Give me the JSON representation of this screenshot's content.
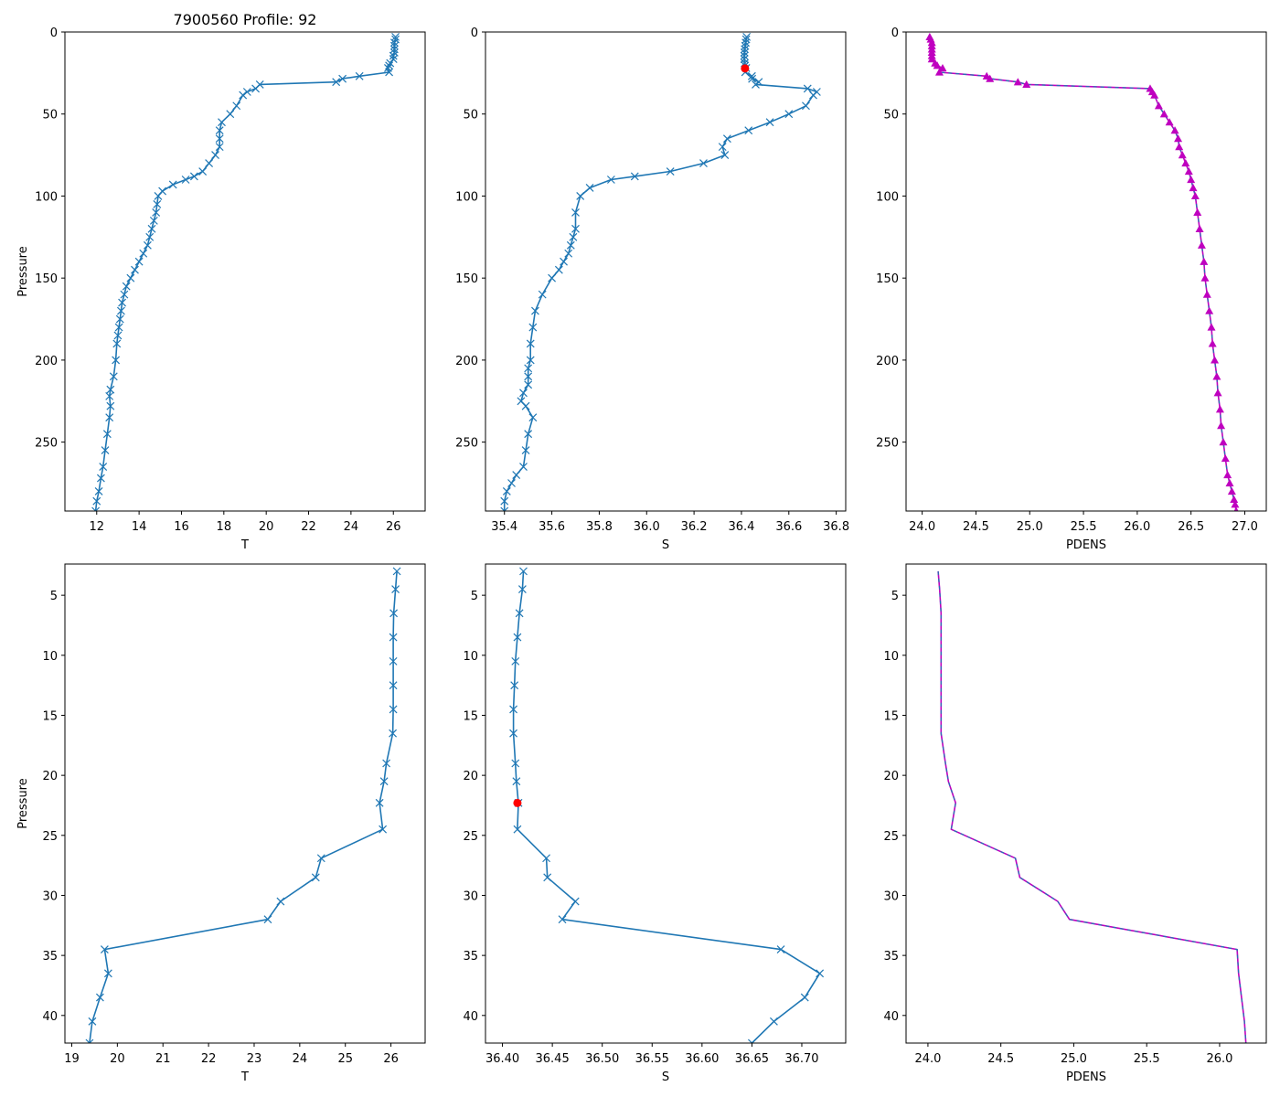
{
  "figure_title": "7900560 Profile: 92",
  "colors": {
    "line": "#1f77b4",
    "density": "#bf00bf",
    "density_dash": "#1f77b4",
    "flag": "#ff0000"
  },
  "chart_data": [
    {
      "id": "temp-full",
      "type": "line",
      "xlabel": "T",
      "ylabel": "Pressure",
      "title": "7900560 Profile: 92",
      "xlim": [
        10.5,
        27.5
      ],
      "ylim": [
        292,
        0
      ],
      "xticks": [
        12,
        14,
        16,
        18,
        20,
        22,
        24,
        26
      ],
      "yticks": [
        0,
        50,
        100,
        150,
        200,
        250
      ],
      "marker": "x",
      "color": "#1f77b4",
      "x": [
        26.1,
        26.1,
        26.05,
        26.05,
        26.05,
        26.05,
        26.0,
        26.0,
        25.85,
        25.8,
        25.75,
        25.8,
        24.4,
        23.6,
        23.3,
        19.7,
        19.5,
        19.1,
        18.9,
        18.6,
        18.3,
        17.9,
        17.8,
        17.8,
        17.8,
        17.6,
        17.3,
        17.0,
        16.6,
        16.2,
        15.6,
        15.1,
        14.9,
        14.85,
        14.8,
        14.7,
        14.6,
        14.5,
        14.4,
        14.2,
        14.0,
        13.8,
        13.6,
        13.4,
        13.3,
        13.2,
        13.15,
        13.1,
        13.05,
        13.0,
        12.95,
        12.9,
        12.8,
        12.65,
        12.6,
        12.65,
        12.6,
        12.5,
        12.4,
        12.3,
        12.2,
        12.1,
        12.0,
        11.95
      ],
      "y": [
        3,
        4.5,
        6.5,
        8.5,
        10.5,
        12.5,
        14.5,
        16.5,
        19,
        20.5,
        22,
        24.5,
        26.9,
        28.5,
        30.5,
        32,
        34.5,
        36.5,
        38.5,
        45,
        50,
        55,
        60,
        65,
        70,
        75,
        80,
        85,
        88,
        90,
        93,
        97,
        100,
        105,
        110,
        115,
        120,
        125,
        130,
        135,
        140,
        145,
        150,
        155,
        160,
        165,
        170,
        175,
        180,
        185,
        190,
        200,
        210,
        218,
        222,
        228,
        235,
        245,
        255,
        265,
        272,
        280,
        286,
        292
      ]
    },
    {
      "id": "sal-full",
      "type": "line",
      "xlabel": "S",
      "ylabel": "",
      "title": "",
      "xlim": [
        35.32,
        36.84
      ],
      "ylim": [
        292,
        0
      ],
      "xticks": [
        35.4,
        35.6,
        35.8,
        36.0,
        36.2,
        36.4,
        36.6,
        36.8
      ],
      "yticks": [
        0,
        50,
        100,
        150,
        200,
        250
      ],
      "marker": "x",
      "color": "#1f77b4",
      "x": [
        36.422,
        36.42,
        36.418,
        36.416,
        36.414,
        36.413,
        36.412,
        36.412,
        36.414,
        36.415,
        36.42,
        36.416,
        36.444,
        36.445,
        36.473,
        36.46,
        36.679,
        36.718,
        36.703,
        36.672,
        36.6,
        36.52,
        36.43,
        36.34,
        36.32,
        36.33,
        36.24,
        36.1,
        35.95,
        35.85,
        35.76,
        35.72,
        35.7,
        35.7,
        35.69,
        35.68,
        35.67,
        35.65,
        35.63,
        35.6,
        35.56,
        35.53,
        35.52,
        35.51,
        35.51,
        35.5,
        35.5,
        35.5,
        35.48,
        35.47,
        35.49,
        35.52,
        35.5,
        35.49,
        35.48,
        35.45,
        35.43,
        35.41,
        35.4,
        35.4
      ],
      "y": [
        3,
        4.5,
        6.5,
        8.5,
        10.5,
        12.5,
        14.5,
        16.5,
        19,
        20.5,
        22,
        24.5,
        26.9,
        28.5,
        30.5,
        32,
        34.5,
        36.5,
        38.5,
        45,
        50,
        55,
        60,
        65,
        70,
        75,
        80,
        85,
        88,
        90,
        95,
        100,
        110,
        120,
        125,
        130,
        135,
        140,
        145,
        150,
        160,
        170,
        180,
        190,
        200,
        205,
        210,
        215,
        220,
        225,
        228,
        235,
        245,
        255,
        265,
        270,
        275,
        280,
        286,
        292
      ],
      "flag": {
        "x": 36.415,
        "y": 22.2
      }
    },
    {
      "id": "dens-full",
      "type": "line",
      "xlabel": "PDENS",
      "ylabel": "",
      "title": "",
      "xlim": [
        23.85,
        27.2
      ],
      "ylim": [
        292,
        0
      ],
      "xticks": [
        24.0,
        24.5,
        25.0,
        25.5,
        26.0,
        26.5,
        27.0
      ],
      "yticks": [
        0,
        50,
        100,
        150,
        200,
        250
      ],
      "marker": "triangle",
      "color": "#bf00bf",
      "dash_color": "#1f77b4",
      "x": [
        24.07,
        24.08,
        24.09,
        24.09,
        24.09,
        24.09,
        24.09,
        24.09,
        24.12,
        24.14,
        24.19,
        24.16,
        24.6,
        24.63,
        24.89,
        24.97,
        26.12,
        26.14,
        26.16,
        26.2,
        26.25,
        26.3,
        26.35,
        26.38,
        26.39,
        26.42,
        26.45,
        26.48,
        26.5,
        26.52,
        26.54,
        26.56,
        26.58,
        26.6,
        26.62,
        26.63,
        26.65,
        26.67,
        26.69,
        26.7,
        26.72,
        26.74,
        26.75,
        26.77,
        26.78,
        26.8,
        26.82,
        26.84,
        26.86,
        26.88,
        26.9,
        26.91,
        26.92
      ],
      "y": [
        3,
        4.5,
        6.5,
        8.5,
        10.5,
        12.5,
        14.5,
        16.5,
        19,
        20.5,
        22,
        24.5,
        26.9,
        28.5,
        30.5,
        32,
        34.5,
        36.5,
        38.5,
        45,
        50,
        55,
        60,
        65,
        70,
        75,
        80,
        85,
        90,
        95,
        100,
        110,
        120,
        130,
        140,
        150,
        160,
        170,
        180,
        190,
        200,
        210,
        220,
        230,
        240,
        250,
        260,
        270,
        275,
        280,
        285,
        288,
        292
      ]
    },
    {
      "id": "temp-zoom",
      "type": "line",
      "xlabel": "T",
      "ylabel": "Pressure",
      "title": "",
      "xlim": [
        18.85,
        26.75
      ],
      "ylim": [
        42.3,
        2.4
      ],
      "xticks": [
        19,
        20,
        21,
        22,
        23,
        24,
        25,
        26
      ],
      "yticks": [
        5,
        10,
        15,
        20,
        25,
        30,
        35,
        40
      ],
      "marker": "x",
      "color": "#1f77b4",
      "x": [
        26.13,
        26.1,
        26.06,
        26.05,
        26.05,
        26.05,
        26.05,
        26.04,
        25.9,
        25.85,
        25.75,
        25.82,
        24.47,
        24.35,
        23.58,
        23.3,
        19.72,
        19.8,
        19.62,
        19.45,
        19.39
      ],
      "y": [
        3,
        4.5,
        6.5,
        8.5,
        10.5,
        12.5,
        14.5,
        16.5,
        19,
        20.5,
        22.3,
        24.5,
        26.9,
        28.5,
        30.5,
        32,
        34.5,
        36.5,
        38.5,
        40.5,
        42.3
      ]
    },
    {
      "id": "sal-zoom",
      "type": "line",
      "xlabel": "S",
      "ylabel": "",
      "title": "",
      "xlim": [
        36.383,
        36.744
      ],
      "ylim": [
        42.3,
        2.4
      ],
      "xticks": [
        36.4,
        36.45,
        36.5,
        36.55,
        36.6,
        36.65,
        36.7
      ],
      "yticks": [
        5,
        10,
        15,
        20,
        25,
        30,
        35,
        40
      ],
      "marker": "x",
      "color": "#1f77b4",
      "x": [
        36.421,
        36.42,
        36.417,
        36.415,
        36.413,
        36.412,
        36.411,
        36.411,
        36.413,
        36.414,
        36.416,
        36.415,
        36.444,
        36.445,
        36.473,
        36.46,
        36.679,
        36.718,
        36.703,
        36.672,
        36.65
      ],
      "y": [
        3,
        4.5,
        6.5,
        8.5,
        10.5,
        12.5,
        14.5,
        16.5,
        19,
        20.5,
        22.3,
        24.5,
        26.9,
        28.5,
        30.5,
        32,
        34.5,
        36.5,
        38.5,
        40.5,
        42.3
      ],
      "flag": {
        "x": 36.415,
        "y": 22.3
      }
    },
    {
      "id": "dens-zoom",
      "type": "line",
      "xlabel": "PDENS",
      "ylabel": "",
      "title": "",
      "xlim": [
        23.85,
        26.32
      ],
      "ylim": [
        42.3,
        2.4
      ],
      "xticks": [
        24.0,
        24.5,
        25.0,
        25.5,
        26.0
      ],
      "yticks": [
        5,
        10,
        15,
        20,
        25,
        30,
        35,
        40
      ],
      "marker": "none",
      "color": "#bf00bf",
      "dash_color": "#1f77b4",
      "x": [
        24.07,
        24.08,
        24.09,
        24.09,
        24.09,
        24.09,
        24.09,
        24.09,
        24.12,
        24.14,
        24.19,
        24.16,
        24.6,
        24.63,
        24.89,
        24.97,
        26.12,
        26.13,
        26.15,
        26.17,
        26.18
      ],
      "y": [
        3,
        4.5,
        6.5,
        8.5,
        10.5,
        12.5,
        14.5,
        16.5,
        19,
        20.5,
        22.3,
        24.5,
        26.9,
        28.5,
        30.5,
        32,
        34.5,
        36.5,
        38.5,
        40.5,
        42.3
      ]
    }
  ]
}
